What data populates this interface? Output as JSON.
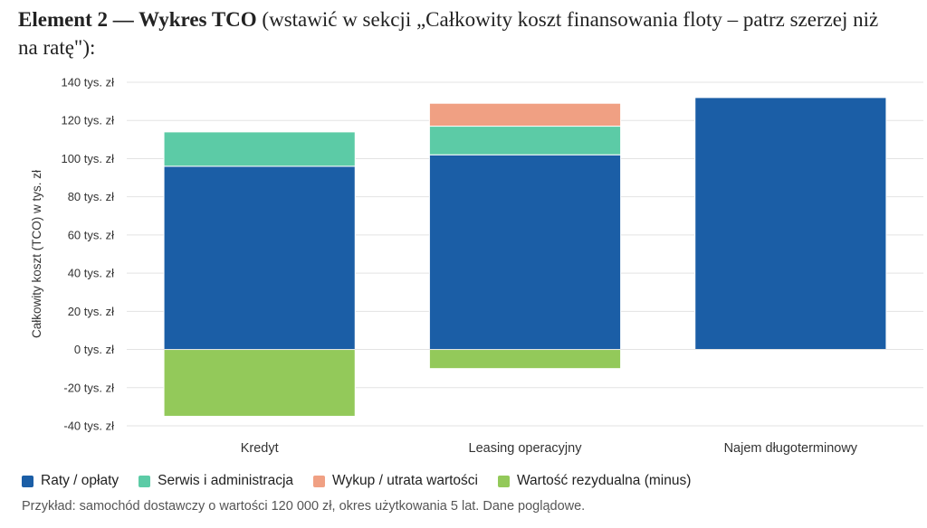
{
  "heading": {
    "bold": "Element 2 — Wykres TCO",
    "rest": " (wstawić w sekcji „Całkowity koszt finansowania floty – patrz szerzej niż na ratę\"):"
  },
  "chart_data": {
    "type": "bar",
    "stacked": true,
    "categories": [
      "Kredyt",
      "Leasing operacyjny",
      "Najem długoterminowy"
    ],
    "series": [
      {
        "name": "Raty / opłaty",
        "color": "#1b5ea6",
        "values": [
          96,
          102,
          132
        ]
      },
      {
        "name": "Serwis i administracja",
        "color": "#5ccba6",
        "values": [
          18,
          15,
          0
        ]
      },
      {
        "name": "Wykup / utrata wartości",
        "color": "#f0a083",
        "values": [
          0,
          12,
          0
        ]
      },
      {
        "name": "Wartość rezydualna (minus)",
        "color": "#93c95a",
        "values": [
          -35,
          -10,
          0
        ]
      }
    ],
    "ylim": [
      -40,
      140
    ],
    "yticks": [
      -40,
      -20,
      0,
      20,
      40,
      60,
      80,
      100,
      120,
      140
    ],
    "ytick_labels": [
      "-40 tys. zł",
      "-20 tys. zł",
      "0 tys. zł",
      "20 tys. zł",
      "40 tys. zł",
      "60 tys. zł",
      "80 tys. zł",
      "100 tys. zł",
      "120 tys. zł",
      "140 tys. zł"
    ],
    "ylabel": "Całkowity koszt (TCO) w tys. zł",
    "xlabel": "",
    "grid": true,
    "legend_position": "bottom"
  },
  "footnote": "Przykład: samochód dostawczy o wartości 120 000 zł, okres użytkowania 5 lat. Dane poglądowe."
}
